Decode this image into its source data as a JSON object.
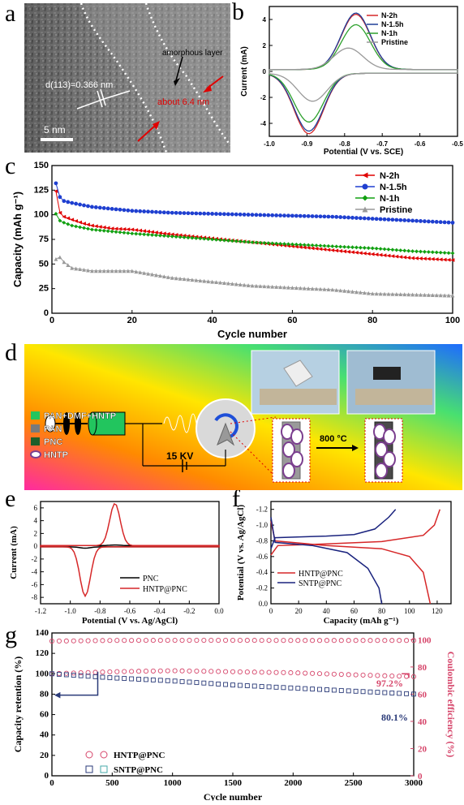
{
  "panel_labels": {
    "a": "a",
    "b": "b",
    "c": "c",
    "d": "d",
    "e": "e",
    "f": "f",
    "g": "g"
  },
  "tem": {
    "lattice_label": "d(113)=0.366 nm",
    "amorphous_label": "amorphous layer",
    "thickness_label": "about 6.4 nm",
    "scale_label": "5 nm"
  },
  "schematic": {
    "legend": [
      "PAN+DMF+HNTP",
      "PAN",
      "PNC",
      "HNTP"
    ],
    "legend_colors": [
      "#22c55e",
      "#7a7a7a",
      "#1f5e2a",
      "#7b3f8f"
    ],
    "voltage_label": "15 KV",
    "temperature_label": "800 °C"
  },
  "chart_data": [
    {
      "panel": "b",
      "type": "line",
      "xlabel": "Potential (V vs. SCE)",
      "ylabel": "Current (mA)",
      "xlim": [
        -1.0,
        -0.5
      ],
      "ylim": [
        -5,
        5
      ],
      "xticks": [
        "-1.0",
        "-0.9",
        "-0.8",
        "-0.7",
        "-0.6",
        "-0.5"
      ],
      "yticks": [
        "4",
        "2",
        "0",
        "-2",
        "-4"
      ],
      "legend_position": "top-right",
      "series": [
        {
          "name": "N-2h",
          "color": "#d62728",
          "ox_peak": [
            -0.77,
            4.4
          ],
          "red_peak": [
            -0.895,
            -4.8
          ]
        },
        {
          "name": "N-1.5h",
          "color": "#1f3f99",
          "ox_peak": [
            -0.77,
            4.5
          ],
          "red_peak": [
            -0.895,
            -4.6
          ]
        },
        {
          "name": "N-1h",
          "color": "#2ca02c",
          "ox_peak": [
            -0.77,
            3.6
          ],
          "red_peak": [
            -0.895,
            -3.9
          ]
        },
        {
          "name": "Pristine",
          "color": "#999999",
          "ox_peak": [
            -0.79,
            1.8
          ],
          "red_peak": [
            -0.885,
            -2.3
          ]
        }
      ]
    },
    {
      "panel": "c",
      "type": "line",
      "xlabel": "Cycle number",
      "ylabel": "Capacity (mAh g⁻¹)",
      "xlim": [
        0,
        100
      ],
      "ylim": [
        0,
        150
      ],
      "xticks": [
        "0",
        "20",
        "40",
        "60",
        "80",
        "100"
      ],
      "yticks": [
        "0",
        "25",
        "50",
        "75",
        "100",
        "125",
        "150"
      ],
      "legend_position": "top-right",
      "series": [
        {
          "name": "N-2h",
          "color": "#e00000",
          "marker": "triangle-left",
          "points": [
            [
              1,
              124
            ],
            [
              2,
              102
            ],
            [
              3,
              98
            ],
            [
              5,
              95
            ],
            [
              8,
              91
            ],
            [
              10,
              89
            ],
            [
              15,
              86
            ],
            [
              20,
              85
            ],
            [
              30,
              80
            ],
            [
              40,
              76
            ],
            [
              50,
              72
            ],
            [
              60,
              68
            ],
            [
              70,
              64
            ],
            [
              80,
              60
            ],
            [
              90,
              56
            ],
            [
              100,
              54
            ]
          ]
        },
        {
          "name": "N-1.5h",
          "color": "#1f3fd0",
          "marker": "circle",
          "points": [
            [
              1,
              132
            ],
            [
              2,
              118
            ],
            [
              3,
              114
            ],
            [
              5,
              112
            ],
            [
              10,
              108
            ],
            [
              20,
              104
            ],
            [
              30,
              102
            ],
            [
              40,
              101
            ],
            [
              50,
              100
            ],
            [
              60,
              99
            ],
            [
              70,
              98
            ],
            [
              80,
              96
            ],
            [
              90,
              94
            ],
            [
              100,
              92
            ]
          ]
        },
        {
          "name": "N-1h",
          "color": "#11a011",
          "marker": "diamond",
          "points": [
            [
              1,
              101
            ],
            [
              2,
              94
            ],
            [
              3,
              92
            ],
            [
              5,
              89
            ],
            [
              10,
              85
            ],
            [
              20,
              81
            ],
            [
              30,
              78
            ],
            [
              40,
              75
            ],
            [
              50,
              72
            ],
            [
              60,
              70
            ],
            [
              70,
              68
            ],
            [
              80,
              66
            ],
            [
              90,
              63
            ],
            [
              100,
              61
            ]
          ]
        },
        {
          "name": "Pristine",
          "color": "#999999",
          "marker": "triangle-up",
          "points": [
            [
              1,
              55
            ],
            [
              2,
              57
            ],
            [
              3,
              52
            ],
            [
              5,
              46
            ],
            [
              10,
              43
            ],
            [
              20,
              43
            ],
            [
              30,
              36
            ],
            [
              40,
              32
            ],
            [
              50,
              28
            ],
            [
              60,
              26
            ],
            [
              70,
              24
            ],
            [
              80,
              20
            ],
            [
              90,
              19
            ],
            [
              100,
              18
            ]
          ]
        }
      ]
    },
    {
      "panel": "e",
      "type": "line",
      "xlabel": "Potential (V vs. Ag/AgCl)",
      "ylabel": "Current (mA)",
      "xlim": [
        -1.2,
        0.0
      ],
      "ylim": [
        -9,
        7
      ],
      "xticks": [
        "-1.2",
        "-1.0",
        "-0.8",
        "-0.6",
        "-0.4",
        "-0.2",
        "0.0"
      ],
      "yticks": [
        "6",
        "4",
        "2",
        "0",
        "-2",
        "-4",
        "-6",
        "-8"
      ],
      "legend_position": "bottom-right",
      "series": [
        {
          "name": "PNC",
          "color": "#000000",
          "ox_peak": [
            -0.7,
            0.2
          ],
          "red_peak": [
            -0.9,
            -0.3
          ]
        },
        {
          "name": "HNTP@PNC",
          "color": "#d62728",
          "ox_peak": [
            -0.7,
            6.7
          ],
          "red_peak": [
            -0.9,
            -7.8
          ]
        }
      ]
    },
    {
      "panel": "f",
      "type": "line",
      "xlabel": "Capacity (mAh g⁻¹)",
      "ylabel": "Potential (V vs. Ag/AgCl)",
      "xlim": [
        0,
        130
      ],
      "ylim": [
        0.0,
        -1.3
      ],
      "xticks": [
        "0",
        "20",
        "40",
        "60",
        "80",
        "100",
        "120"
      ],
      "yticks": [
        "-1.2",
        "-1.0",
        "-0.8",
        "-0.6",
        "-0.4",
        "-0.2",
        "0.0"
      ],
      "legend_position": "bottom-left",
      "series": [
        {
          "name": "HNTP@PNC",
          "color": "#d62728",
          "charge": [
            [
              0,
              -0.62
            ],
            [
              5,
              -0.74
            ],
            [
              40,
              -0.76
            ],
            [
              80,
              -0.79
            ],
            [
              110,
              -0.87
            ],
            [
              118,
              -1.0
            ],
            [
              122,
              -1.2
            ]
          ],
          "discharge": [
            [
              0,
              -1.05
            ],
            [
              3,
              -0.8
            ],
            [
              40,
              -0.74
            ],
            [
              80,
              -0.7
            ],
            [
              100,
              -0.6
            ],
            [
              110,
              -0.4
            ],
            [
              115,
              0.0
            ]
          ]
        },
        {
          "name": "SNTP@PNC",
          "color": "#1a237e",
          "charge": [
            [
              0,
              -0.7
            ],
            [
              3,
              -0.84
            ],
            [
              40,
              -0.86
            ],
            [
              60,
              -0.88
            ],
            [
              75,
              -0.95
            ],
            [
              85,
              -1.1
            ],
            [
              90,
              -1.2
            ]
          ],
          "discharge": [
            [
              0,
              -1.1
            ],
            [
              3,
              -0.78
            ],
            [
              30,
              -0.74
            ],
            [
              55,
              -0.65
            ],
            [
              70,
              -0.45
            ],
            [
              78,
              -0.2
            ],
            [
              80,
              0.0
            ]
          ]
        }
      ]
    },
    {
      "panel": "g",
      "type": "scatter",
      "xlabel": "Cycle number",
      "ylabel": "Capacity retention (%)",
      "y2label": "Coulombic efficiency (%)",
      "xlim": [
        0,
        3000
      ],
      "ylim": [
        0,
        140
      ],
      "y2lim": [
        0,
        105
      ],
      "xticks": [
        "0",
        "500",
        "1000",
        "1500",
        "2000",
        "2500",
        "3000"
      ],
      "yticks": [
        "0",
        "20",
        "40",
        "60",
        "80",
        "100",
        "120",
        "140"
      ],
      "y2ticks": [
        "0",
        "20",
        "40",
        "60",
        "80",
        "100"
      ],
      "legend_position": "bottom-left",
      "annotations": [
        "97.2%",
        "80.1%"
      ],
      "series": [
        {
          "name": "HNTP@PNC",
          "color": "#d6456a",
          "retention": [
            [
              0,
              100
            ],
            [
              500,
              102
            ],
            [
              1000,
              103
            ],
            [
              1500,
              102
            ],
            [
              2000,
              101
            ],
            [
              2500,
              99
            ],
            [
              3000,
              97.2
            ]
          ],
          "efficiency": [
            [
              0,
              99
            ],
            [
              500,
              99.5
            ],
            [
              1000,
              99.6
            ],
            [
              1500,
              99.6
            ],
            [
              2000,
              99.5
            ],
            [
              2500,
              99.5
            ],
            [
              3000,
              99.5
            ]
          ]
        },
        {
          "name": "SNTP@PNC",
          "color": "#2a3a78",
          "retention": [
            [
              0,
              100
            ],
            [
              500,
              96
            ],
            [
              1000,
              93
            ],
            [
              1500,
              89
            ],
            [
              2000,
              86
            ],
            [
              2500,
              83
            ],
            [
              3000,
              80.1
            ]
          ],
          "efficiency": [
            [
              0,
              99
            ],
            [
              500,
              99
            ],
            [
              1000,
              99.2
            ],
            [
              1500,
              99.2
            ],
            [
              2000,
              99
            ],
            [
              2500,
              99
            ],
            [
              3000,
              99
            ]
          ]
        }
      ]
    }
  ]
}
